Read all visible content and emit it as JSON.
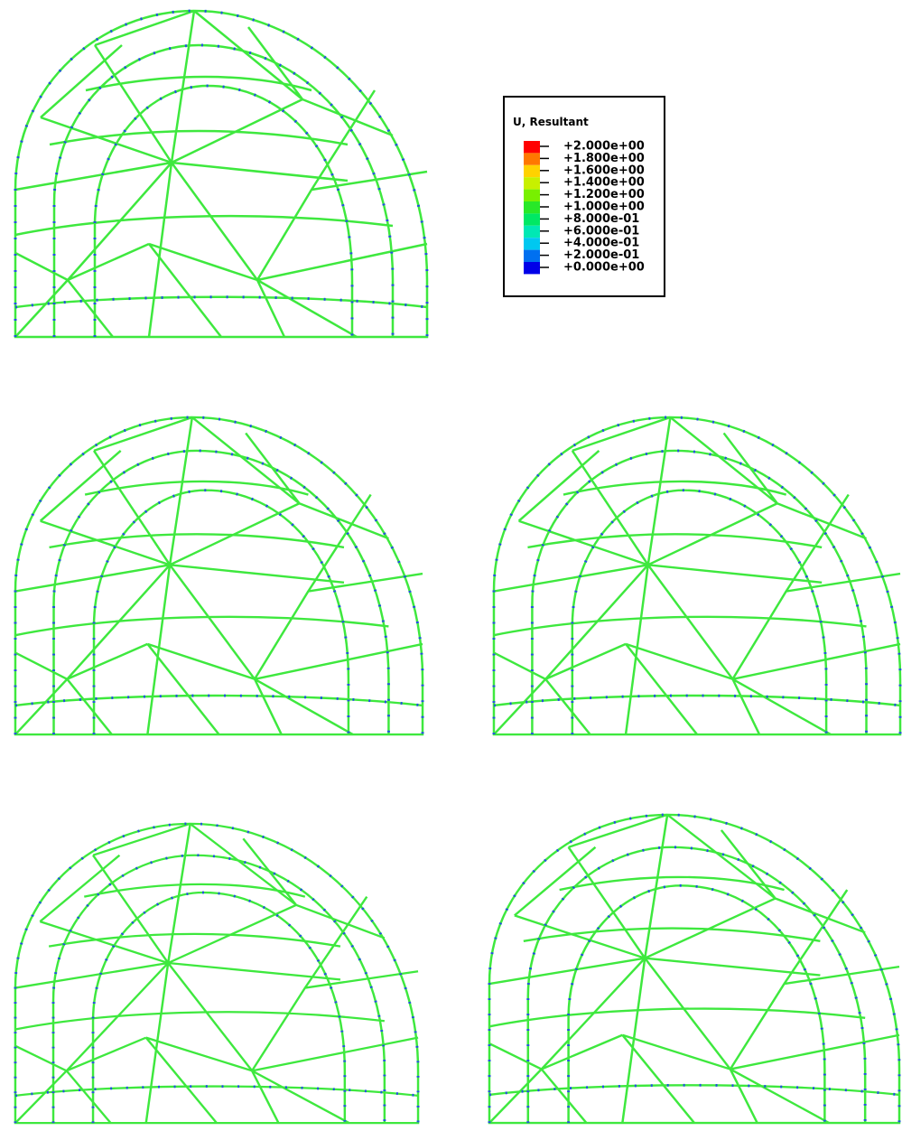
{
  "legend": {
    "title": "U, Resultant",
    "labels": [
      "+2.000e+00",
      "+1.800e+00",
      "+1.600e+00",
      "+1.400e+00",
      "+1.200e+00",
      "+1.000e+00",
      "+8.000e-01",
      "+6.000e-01",
      "+4.000e-01",
      "+2.000e-01",
      "+0.000e+00"
    ]
  }
}
